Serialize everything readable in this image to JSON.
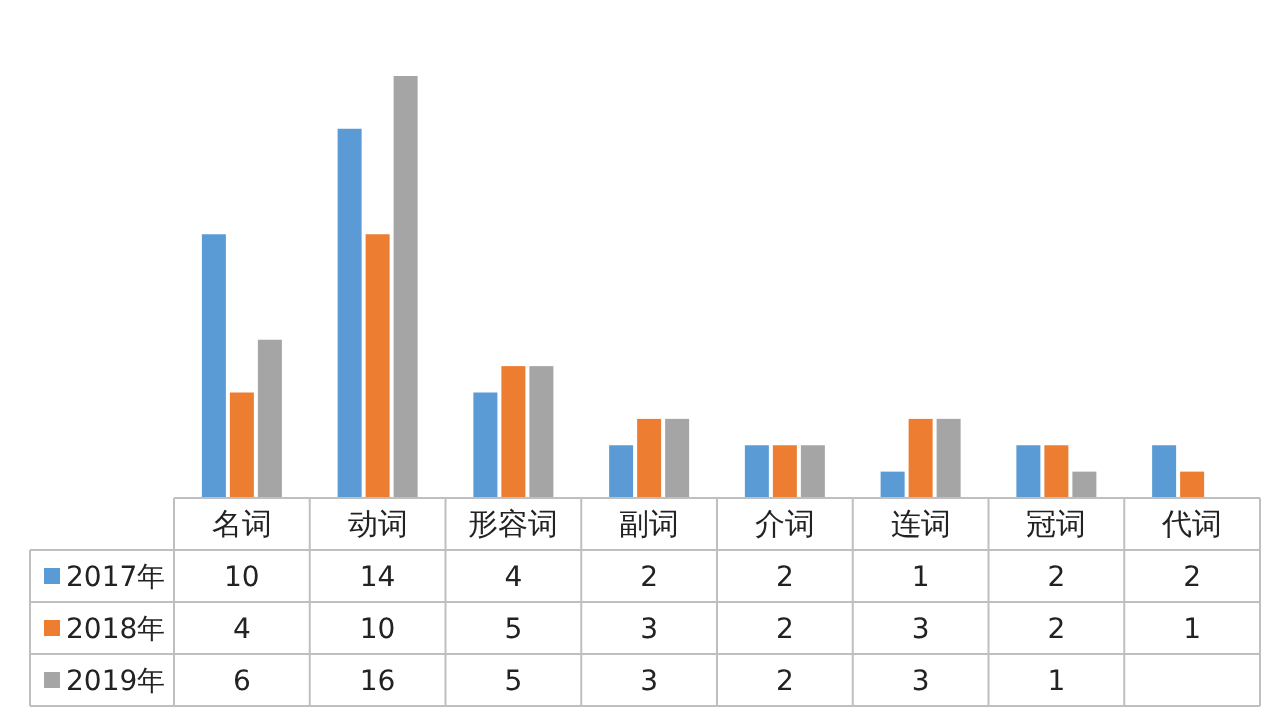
{
  "chart_data": {
    "type": "bar",
    "categories": [
      "名词",
      "动词",
      "形容词",
      "副词",
      "介词",
      "连词",
      "冠词",
      "代词"
    ],
    "series": [
      {
        "name": "2017年",
        "color": "#5b9bd5",
        "values": [
          10,
          14,
          4,
          2,
          2,
          1,
          2,
          2
        ]
      },
      {
        "name": "2018年",
        "color": "#ed7d31",
        "values": [
          4,
          10,
          5,
          3,
          2,
          3,
          2,
          1
        ]
      },
      {
        "name": "2019年",
        "color": "#a5a5a5",
        "values": [
          6,
          16,
          5,
          3,
          2,
          3,
          1,
          null
        ]
      }
    ],
    "data_labels": true,
    "legend": "bottom",
    "grid": false
  }
}
